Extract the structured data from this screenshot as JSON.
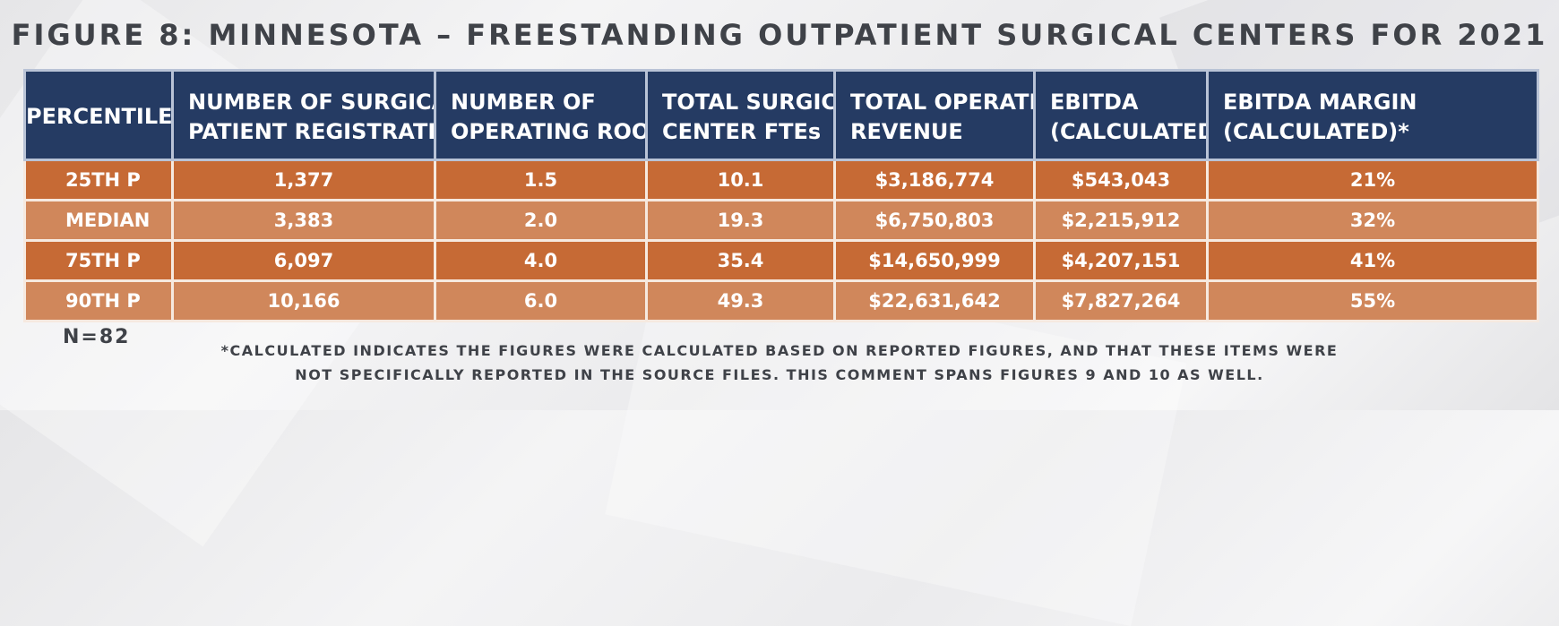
{
  "title": "FIGURE 8: MINNESOTA – FREESTANDING OUTPATIENT SURGICAL CENTERS FOR 2021",
  "chart_data": {
    "type": "table",
    "title": "FIGURE 8: MINNESOTA – FREESTANDING OUTPATIENT SURGICAL CENTERS FOR 2021",
    "columns": [
      {
        "line1": "PERCENTILE",
        "line2": ""
      },
      {
        "line1": "NUMBER OF SURGICAL",
        "line2": "PATIENT REGISTRATIONS"
      },
      {
        "line1": "NUMBER OF",
        "line2": "OPERATING ROOMS"
      },
      {
        "line1": "TOTAL SURGICAL",
        "line2": "CENTER FTEs"
      },
      {
        "line1": "TOTAL OPERATING",
        "line2": "REVENUE"
      },
      {
        "line1": "EBITDA",
        "line2": "(CALCULATED)*"
      },
      {
        "line1": "EBITDA MARGIN",
        "line2": "(CALCULATED)*"
      }
    ],
    "rows": [
      [
        "25TH P",
        "1,377",
        "1.5",
        "10.1",
        "$3,186,774",
        "$543,043",
        "21%"
      ],
      [
        "MEDIAN",
        "3,383",
        "2.0",
        "19.3",
        "$6,750,803",
        "$2,215,912",
        "32%"
      ],
      [
        "75TH P",
        "6,097",
        "4.0",
        "35.4",
        "$14,650,999",
        "$4,207,151",
        "41%"
      ],
      [
        "90TH P",
        "10,166",
        "6.0",
        "49.3",
        "$22,631,642",
        "$7,827,264",
        "55%"
      ]
    ]
  },
  "n_label": "N=82",
  "footnote": {
    "line1": "*CALCULATED INDICATES THE FIGURES WERE CALCULATED BASED ON REPORTED FIGURES, AND THAT THESE ITEMS WERE",
    "line2": "NOT SPECIFICALLY REPORTED IN THE SOURCE FILES. THIS COMMENT SPANS FIGURES 9 AND 10 AS WELL."
  },
  "colors": {
    "header_bg": "#253b63",
    "row_dark": "#c66a35",
    "row_light": "#d0875b",
    "text_dark": "#3f4248"
  }
}
